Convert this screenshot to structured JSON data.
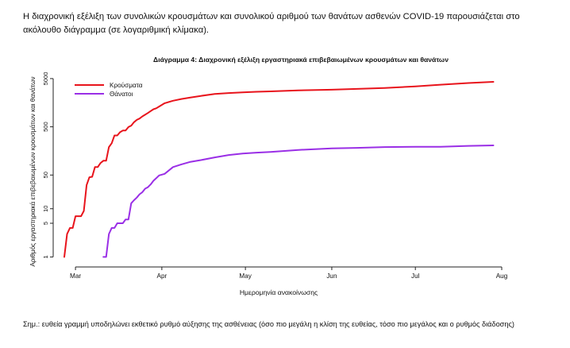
{
  "intro_text": "Η διαχρονική εξέλιξη των συνολικών κρουσμάτων και συνολικού αριθμού των θανάτων ασθενών COVID-19 παρουσιάζεται στο ακόλουθο διάγραμμα (σε λογαριθμική κλίμακα).",
  "note_text": "Σημ.: ευθεία γραμμή υποδηλώνει εκθετικό ρυθμό αύξησης της ασθένειας (όσο πιο μεγάλη η κλίση της ευθείας, τόσο πιο μεγάλος και ο ρυθμός διάδοσης)",
  "colors": {
    "cases": "#e8141c",
    "deaths": "#9a2fe6",
    "axis": "#222222"
  },
  "chart_data": {
    "type": "line",
    "title": "Διάγραμμα 4: Διαχρονική εξέλιξη εργαστηριακά επιβεβαιωμένων κρουσμάτων και θανάτων",
    "xlabel": "Ημερομηνία ανακοίνωσης",
    "ylabel": "Αριθμός εργαστηριακά επιβεβαιωμένων κρουσμάτων και θανάτων",
    "yscale": "log",
    "ylim": [
      0.75,
      6500
    ],
    "xlim": [
      "2020-02-22",
      "2020-08-01"
    ],
    "yticks": [
      1,
      5,
      10,
      50,
      500,
      5000
    ],
    "ytick_labels": [
      "1",
      "5",
      "10",
      "50",
      "500",
      "5000"
    ],
    "xticks": [
      "2020-03-01",
      "2020-04-01",
      "2020-05-01",
      "2020-06-01",
      "2020-07-01",
      "2020-08-01"
    ],
    "xtick_labels": [
      "Mar",
      "Apr",
      "May",
      "Jun",
      "Jul",
      "Aug"
    ],
    "legend_position": "top-left",
    "grid": false,
    "series": [
      {
        "name": "Κρούσματα",
        "color_key": "cases",
        "points": [
          [
            "2020-02-26",
            1
          ],
          [
            "2020-02-27",
            3
          ],
          [
            "2020-02-28",
            4
          ],
          [
            "2020-02-29",
            4
          ],
          [
            "2020-03-01",
            7
          ],
          [
            "2020-03-02",
            7
          ],
          [
            "2020-03-03",
            7
          ],
          [
            "2020-03-04",
            9
          ],
          [
            "2020-03-05",
            31
          ],
          [
            "2020-03-06",
            45
          ],
          [
            "2020-03-07",
            46
          ],
          [
            "2020-03-08",
            73
          ],
          [
            "2020-03-09",
            73
          ],
          [
            "2020-03-10",
            89
          ],
          [
            "2020-03-11",
            99
          ],
          [
            "2020-03-12",
            99
          ],
          [
            "2020-03-13",
            190
          ],
          [
            "2020-03-14",
            228
          ],
          [
            "2020-03-15",
            331
          ],
          [
            "2020-03-16",
            331
          ],
          [
            "2020-03-17",
            387
          ],
          [
            "2020-03-18",
            418
          ],
          [
            "2020-03-19",
            418
          ],
          [
            "2020-03-20",
            495
          ],
          [
            "2020-03-21",
            530
          ],
          [
            "2020-03-22",
            624
          ],
          [
            "2020-03-23",
            695
          ],
          [
            "2020-03-24",
            743
          ],
          [
            "2020-03-25",
            821
          ],
          [
            "2020-03-26",
            892
          ],
          [
            "2020-03-27",
            966
          ],
          [
            "2020-03-28",
            1061
          ],
          [
            "2020-03-29",
            1156
          ],
          [
            "2020-03-30",
            1212
          ],
          [
            "2020-03-31",
            1314
          ],
          [
            "2020-04-02",
            1544
          ],
          [
            "2020-04-05",
            1735
          ],
          [
            "2020-04-08",
            1884
          ],
          [
            "2020-04-11",
            2011
          ],
          [
            "2020-04-15",
            2192
          ],
          [
            "2020-04-20",
            2401
          ],
          [
            "2020-04-25",
            2506
          ],
          [
            "2020-04-30",
            2591
          ],
          [
            "2020-05-05",
            2663
          ],
          [
            "2020-05-10",
            2716
          ],
          [
            "2020-05-20",
            2850
          ],
          [
            "2020-06-01",
            2937
          ],
          [
            "2020-06-10",
            3058
          ],
          [
            "2020-06-20",
            3203
          ],
          [
            "2020-07-01",
            3432
          ],
          [
            "2020-07-10",
            3732
          ],
          [
            "2020-07-20",
            4048
          ],
          [
            "2020-07-29",
            4279
          ]
        ]
      },
      {
        "name": "Θάνατοι",
        "color_key": "deaths",
        "points": [
          [
            "2020-03-11",
            1
          ],
          [
            "2020-03-12",
            1
          ],
          [
            "2020-03-13",
            3
          ],
          [
            "2020-03-14",
            4
          ],
          [
            "2020-03-15",
            4
          ],
          [
            "2020-03-16",
            5
          ],
          [
            "2020-03-17",
            5
          ],
          [
            "2020-03-18",
            5
          ],
          [
            "2020-03-19",
            6
          ],
          [
            "2020-03-20",
            6
          ],
          [
            "2020-03-21",
            13
          ],
          [
            "2020-03-22",
            15
          ],
          [
            "2020-03-23",
            17
          ],
          [
            "2020-03-24",
            20
          ],
          [
            "2020-03-25",
            22
          ],
          [
            "2020-03-26",
            26
          ],
          [
            "2020-03-27",
            28
          ],
          [
            "2020-03-28",
            32
          ],
          [
            "2020-03-29",
            38
          ],
          [
            "2020-03-30",
            43
          ],
          [
            "2020-03-31",
            49
          ],
          [
            "2020-04-02",
            53
          ],
          [
            "2020-04-05",
            73
          ],
          [
            "2020-04-08",
            83
          ],
          [
            "2020-04-11",
            93
          ],
          [
            "2020-04-15",
            102
          ],
          [
            "2020-04-20",
            116
          ],
          [
            "2020-04-25",
            130
          ],
          [
            "2020-04-30",
            140
          ],
          [
            "2020-05-05",
            146
          ],
          [
            "2020-05-10",
            151
          ],
          [
            "2020-05-20",
            166
          ],
          [
            "2020-06-01",
            179
          ],
          [
            "2020-06-10",
            183
          ],
          [
            "2020-06-20",
            190
          ],
          [
            "2020-07-01",
            192
          ],
          [
            "2020-07-10",
            193
          ],
          [
            "2020-07-20",
            201
          ],
          [
            "2020-07-29",
            206
          ]
        ]
      }
    ]
  }
}
